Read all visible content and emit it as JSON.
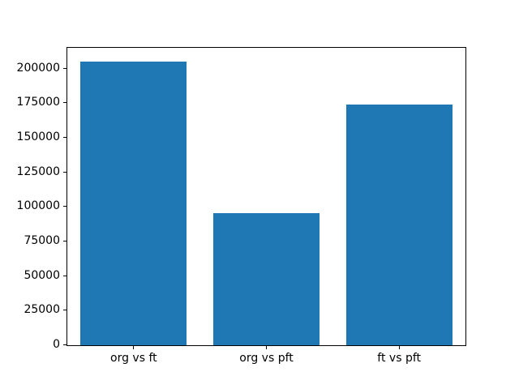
{
  "chart_data": {
    "type": "bar",
    "title": "",
    "xlabel": "",
    "ylabel": "",
    "categories": [
      "org vs ft",
      "org vs pft",
      "ft vs pft"
    ],
    "values": [
      205000,
      95600,
      173800
    ],
    "ylim": [
      0,
      215000
    ],
    "yticks": [
      0,
      25000,
      50000,
      75000,
      100000,
      125000,
      150000,
      175000,
      200000
    ],
    "bar_width_fraction": 0.8,
    "bar_color": "#1f77b4",
    "axis_color": "#000000",
    "background_color": "#ffffff",
    "grid": false,
    "legend": false
  }
}
